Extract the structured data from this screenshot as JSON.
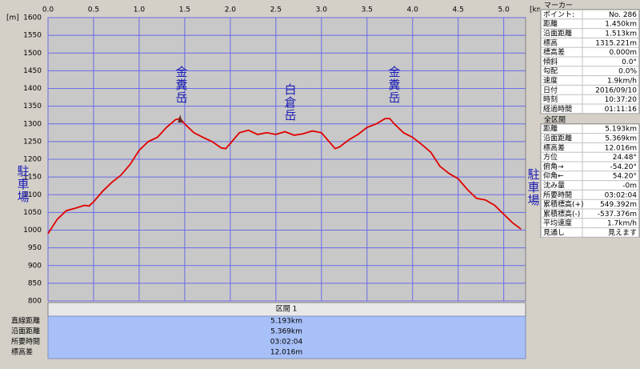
{
  "chart_data": {
    "type": "line",
    "x_unit": "[km]",
    "y_unit": "[m]",
    "xlim": [
      0,
      5.24
    ],
    "xticks": [
      {
        "value": 0,
        "label": "0.0"
      },
      {
        "value": 0.5,
        "label": "0.5"
      },
      {
        "value": 1,
        "label": "1.0"
      },
      {
        "value": 1.5,
        "label": "1.5"
      },
      {
        "value": 2,
        "label": "2.0"
      },
      {
        "value": 2.5,
        "label": "2.5"
      },
      {
        "value": 3,
        "label": "3.0"
      },
      {
        "value": 3.5,
        "label": "3.5"
      },
      {
        "value": 4,
        "label": "4.0"
      },
      {
        "value": 4.5,
        "label": "4.5"
      },
      {
        "value": 5,
        "label": "5.0"
      }
    ],
    "ylim": [
      800,
      1600
    ],
    "yticks": [
      800,
      850,
      900,
      950,
      1000,
      1050,
      1100,
      1150,
      1200,
      1250,
      1300,
      1350,
      1400,
      1450,
      1500,
      1550,
      1600
    ],
    "grid": true,
    "x": [
      0,
      0.1,
      0.2,
      0.3,
      0.4,
      0.45,
      0.5,
      0.6,
      0.7,
      0.8,
      0.9,
      1.0,
      1.1,
      1.2,
      1.3,
      1.4,
      1.45,
      1.5,
      1.6,
      1.7,
      1.8,
      1.9,
      1.95,
      2.0,
      2.1,
      2.2,
      2.3,
      2.4,
      2.5,
      2.6,
      2.7,
      2.8,
      2.9,
      3.0,
      3.1,
      3.15,
      3.2,
      3.3,
      3.4,
      3.5,
      3.6,
      3.7,
      3.75,
      3.8,
      3.9,
      4.0,
      4.1,
      4.2,
      4.3,
      4.4,
      4.5,
      4.6,
      4.7,
      4.8,
      4.9,
      5.0,
      5.1,
      5.19
    ],
    "series": [
      {
        "name": "標高",
        "color": "#e00000",
        "values": [
          990,
          1030,
          1055,
          1062,
          1070,
          1068,
          1080,
          1110,
          1135,
          1155,
          1185,
          1225,
          1250,
          1262,
          1290,
          1312,
          1315,
          1300,
          1275,
          1262,
          1250,
          1232,
          1230,
          1245,
          1275,
          1282,
          1270,
          1275,
          1270,
          1278,
          1268,
          1272,
          1280,
          1275,
          1245,
          1230,
          1235,
          1255,
          1270,
          1290,
          1300,
          1315,
          1315,
          1300,
          1275,
          1262,
          1242,
          1220,
          1180,
          1160,
          1145,
          1115,
          1090,
          1085,
          1070,
          1045,
          1020,
          1003
        ]
      }
    ],
    "marker": {
      "x": 1.45,
      "y": 1315
    },
    "annotations": [
      "金糞岳",
      "白倉岳",
      "金糞岳",
      "駐車場",
      "駐車場"
    ]
  },
  "marker_panel": {
    "title": "マーカー",
    "rows": [
      [
        "ポイント:",
        "No. 286"
      ],
      [
        "距離",
        "1.450km"
      ],
      [
        "沿面距離",
        "1.513km"
      ],
      [
        "標高",
        "1315.221m"
      ],
      [
        "標高差",
        "0.000m"
      ],
      [
        "傾斜",
        "0.0°"
      ],
      [
        "勾配",
        "0.0%"
      ],
      [
        "速度",
        "1.9km/h"
      ],
      [
        "日付",
        "2016/09/10"
      ],
      [
        "時刻",
        "10:37:20"
      ],
      [
        "経過時間",
        "01:11:16"
      ]
    ]
  },
  "total_panel": {
    "title": "全区間",
    "rows": [
      [
        "距離",
        "5.193km"
      ],
      [
        "沿面距離",
        "5.369km"
      ],
      [
        "標高差",
        "12.016m"
      ],
      [
        "方位",
        "24.48°"
      ],
      [
        "俯角→",
        "-54.20°"
      ],
      [
        "仰角←",
        "54.20°"
      ],
      [
        "沈み量",
        "-0m"
      ],
      [
        "所要時間",
        "03:02:04"
      ],
      [
        "累積標高(+)",
        "549.392m"
      ],
      [
        "累積標高(-)",
        "-537.376m"
      ],
      [
        "平均速度",
        "1.7km/h"
      ],
      [
        "見通し",
        "見えます"
      ]
    ]
  },
  "section": {
    "title": "区間 1",
    "rows": [
      [
        "直線距離",
        "5.193km"
      ],
      [
        "沿面距離",
        "5.369km"
      ],
      [
        "所要時間",
        "03:02:04"
      ],
      [
        "標高差",
        "12.016m"
      ]
    ]
  }
}
